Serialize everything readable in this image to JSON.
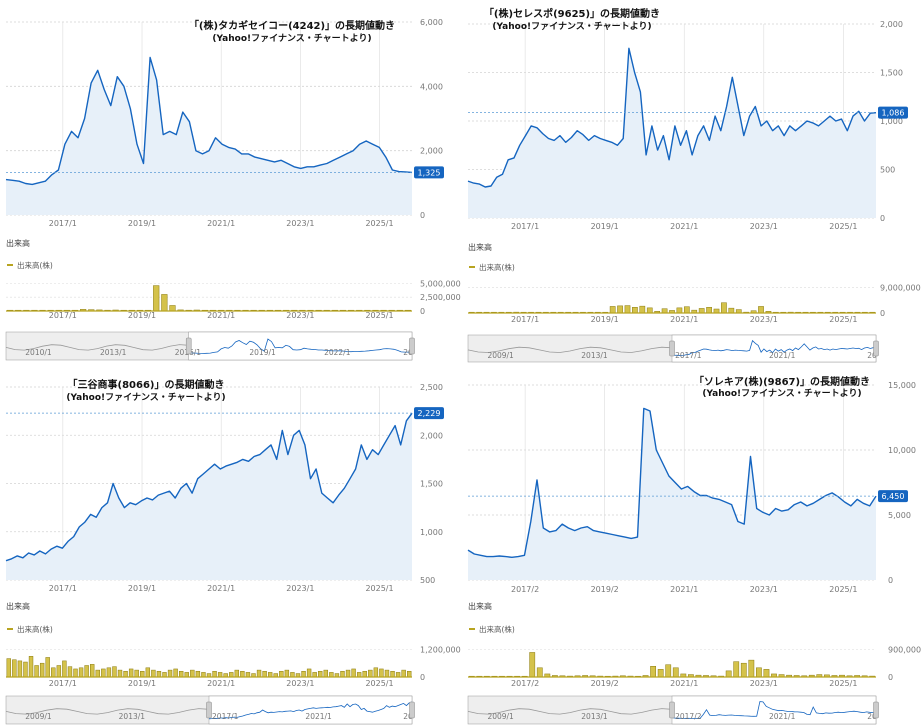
{
  "chart_data": [
    {
      "type": "line",
      "title": "「(株)タカギセイコー(4242)」の長期値動き",
      "subtitle": "(Yahoo!ファイナンス・チャートより)",
      "x_ticks": [
        "2017/1",
        "2019/1",
        "2021/1",
        "2023/1",
        "2025/1"
      ],
      "y_ticks": [
        "0",
        "2,000",
        "4,000",
        "6,000"
      ],
      "ylim": [
        0,
        6000
      ],
      "last_value_label": "1,325",
      "series": [
        {
          "values": [
            1100,
            1080,
            1050,
            980,
            950,
            1000,
            1050,
            1250,
            1400,
            2200,
            2600,
            2400,
            3000,
            4100,
            4500,
            3900,
            3400,
            4300,
            4000,
            3300,
            2200,
            1600,
            4900,
            4200,
            2500,
            2600,
            2500,
            3200,
            2900,
            2000,
            1900,
            2000,
            2400,
            2200,
            2100,
            2050,
            1900,
            1900,
            1800,
            1750,
            1700,
            1650,
            1700,
            1600,
            1500,
            1450,
            1500,
            1500,
            1550,
            1600,
            1700,
            1800,
            1900,
            2000,
            2200,
            2300,
            2200,
            2100,
            1800,
            1400,
            1350,
            1340,
            1325
          ]
        }
      ],
      "volume_label": "出来高",
      "volume_legend": "出来高(株)",
      "volume_ticks": [
        "0",
        "2,500,000",
        "5,000,000"
      ],
      "volume": [
        50000,
        40000,
        30000,
        60000,
        80000,
        50000,
        40000,
        60000,
        90000,
        300000,
        250000,
        200000,
        150000,
        180000,
        120000,
        100000,
        90000,
        80000,
        4600000,
        3000000,
        1000000,
        200000,
        150000,
        180000,
        120000,
        100000,
        90000,
        80000,
        70000,
        60000,
        50000,
        60000,
        70000,
        50000,
        40000,
        60000,
        50000,
        40000,
        30000,
        50000,
        40000,
        30000,
        50000,
        60000,
        40000,
        50000,
        30000,
        40000,
        50000,
        40000
      ],
      "nav_ticks": [
        "2010/1",
        "2013/1",
        "2016/1",
        "2019/1",
        "2022/1",
        "20"
      ]
    },
    {
      "type": "line",
      "title": "「(株)セレスポ(9625)」の長期値動き",
      "subtitle": "(Yahoo!ファイナンス・チャートより)",
      "x_ticks": [
        "2017/1",
        "2019/1",
        "2021/1",
        "2023/1",
        "2025/1"
      ],
      "y_ticks": [
        "0",
        "500",
        "1,000",
        "1,500",
        "2,000"
      ],
      "ylim": [
        0,
        2000
      ],
      "last_value_label": "1,086",
      "series": [
        {
          "values": [
            380,
            360,
            350,
            320,
            330,
            420,
            450,
            600,
            620,
            750,
            850,
            950,
            930,
            870,
            820,
            800,
            850,
            780,
            830,
            900,
            860,
            800,
            850,
            820,
            800,
            780,
            750,
            820,
            1750,
            1500,
            1300,
            650,
            950,
            700,
            850,
            600,
            950,
            750,
            900,
            650,
            850,
            950,
            800,
            1050,
            900,
            1150,
            1450,
            1150,
            850,
            1050,
            1150,
            950,
            1000,
            900,
            950,
            850,
            950,
            900,
            950,
            1000,
            980,
            950,
            1000,
            1050,
            1000,
            1020,
            900,
            1050,
            1100,
            1000,
            1080,
            1086
          ]
        }
      ],
      "volume_label": "出来高",
      "volume_legend": "出来高(株)",
      "volume_ticks": [
        "0",
        "9,000,000"
      ],
      "volume": [
        50000,
        40000,
        30000,
        60000,
        50000,
        40000,
        300000,
        80000,
        50000,
        60000,
        40000,
        60000,
        80000,
        50000,
        40000,
        60000,
        80000,
        70000,
        60000,
        2300000,
        2500000,
        2600000,
        2000000,
        2400000,
        1800000,
        600000,
        1500000,
        900000,
        1800000,
        2200000,
        1000000,
        1600000,
        2000000,
        1400000,
        3600000,
        1700000,
        1200000,
        300000,
        800000,
        2300000,
        600000,
        200000,
        100000,
        300000,
        200000,
        100000,
        150000,
        80000,
        200000,
        100000,
        120000,
        80000,
        60000,
        100000,
        80000
      ],
      "nav_ticks": [
        "2009/1",
        "2013/1",
        "2017/1",
        "2021/1",
        "20"
      ]
    },
    {
      "type": "line",
      "title": "「三谷商事(8066)」の長期値動き",
      "subtitle": "(Yahoo!ファイナンス・チャートより)",
      "x_ticks": [
        "2017/1",
        "2019/1",
        "2021/1",
        "2023/1",
        "2025/1"
      ],
      "y_ticks": [
        "500",
        "1,000",
        "1,500",
        "2,000",
        "2,500"
      ],
      "ylim": [
        500,
        2500
      ],
      "last_value_label": "2,229",
      "series": [
        {
          "values": [
            700,
            720,
            750,
            730,
            780,
            760,
            800,
            770,
            820,
            850,
            830,
            900,
            950,
            1050,
            1100,
            1180,
            1150,
            1250,
            1300,
            1500,
            1350,
            1250,
            1300,
            1280,
            1320,
            1350,
            1330,
            1380,
            1400,
            1420,
            1350,
            1450,
            1500,
            1400,
            1550,
            1600,
            1650,
            1700,
            1650,
            1680,
            1700,
            1720,
            1750,
            1730,
            1780,
            1800,
            1850,
            1900,
            1750,
            2050,
            1800,
            2000,
            2050,
            1900,
            1550,
            1650,
            1400,
            1350,
            1300,
            1380,
            1450,
            1550,
            1650,
            1900,
            1750,
            1850,
            1800,
            1900,
            2000,
            2100,
            1900,
            2150,
            2229
          ]
        }
      ],
      "volume_label": "出来高",
      "volume_legend": "出来高(株)",
      "volume_ticks": [
        "0",
        "1,200,000"
      ],
      "volume": [
        800000,
        750000,
        700000,
        650000,
        900000,
        500000,
        600000,
        850000,
        400000,
        500000,
        700000,
        450000,
        350000,
        400000,
        500000,
        550000,
        300000,
        350000,
        400000,
        450000,
        300000,
        250000,
        350000,
        300000,
        250000,
        400000,
        300000,
        250000,
        200000,
        300000,
        350000,
        250000,
        200000,
        300000,
        250000,
        200000,
        150000,
        250000,
        200000,
        150000,
        200000,
        300000,
        250000,
        200000,
        150000,
        300000,
        250000,
        200000,
        150000,
        250000,
        300000,
        200000,
        150000,
        250000,
        350000,
        200000,
        250000,
        300000,
        200000,
        150000,
        250000,
        300000,
        350000,
        200000,
        250000,
        300000,
        400000,
        350000,
        300000,
        250000,
        200000,
        300000,
        250000
      ],
      "nav_ticks": [
        "2009/1",
        "2013/1",
        "2017/1",
        "2021/1",
        "20"
      ]
    },
    {
      "type": "line",
      "title": "「ソレキア(株)(9867)」の長期値動き",
      "subtitle": "(Yahoo!ファイナンス・チャートより)",
      "x_ticks": [
        "2017/2",
        "2019/2",
        "2021/1",
        "2023/1",
        "2025/1"
      ],
      "y_ticks": [
        "0",
        "5,000",
        "10,000",
        "15,000"
      ],
      "ylim": [
        0,
        15000
      ],
      "last_value_label": "6,450",
      "series": [
        {
          "values": [
            2300,
            2000,
            1900,
            1800,
            1800,
            1850,
            1800,
            1750,
            1800,
            1900,
            4500,
            7700,
            4000,
            3700,
            3800,
            4300,
            4000,
            3800,
            4000,
            4100,
            3800,
            3700,
            3600,
            3500,
            3400,
            3300,
            3200,
            3300,
            13200,
            13000,
            10000,
            9000,
            8000,
            7500,
            7000,
            7200,
            6800,
            6500,
            6500,
            6300,
            6200,
            6000,
            5800,
            4500,
            4300,
            9500,
            5500,
            5200,
            5000,
            5500,
            5300,
            5400,
            5800,
            6000,
            5700,
            5900,
            6200,
            6500,
            6700,
            6400,
            6000,
            5700,
            6200,
            5900,
            5700,
            6450
          ]
        }
      ],
      "volume_label": "出来高",
      "volume_legend": "出来高(株)",
      "volume_ticks": [
        "0",
        "900,000"
      ],
      "volume": [
        5000,
        4000,
        3000,
        4000,
        5000,
        3000,
        4000,
        5000,
        800000,
        300000,
        100000,
        50000,
        40000,
        30000,
        40000,
        50000,
        40000,
        30000,
        20000,
        30000,
        40000,
        30000,
        20000,
        50000,
        350000,
        250000,
        400000,
        300000,
        100000,
        80000,
        60000,
        50000,
        40000,
        30000,
        200000,
        500000,
        450000,
        550000,
        300000,
        250000,
        100000,
        80000,
        60000,
        50000,
        40000,
        60000,
        80000,
        70000,
        50000,
        60000,
        40000,
        50000,
        40000,
        30000
      ],
      "nav_ticks": [
        "2009/1",
        "2013/1",
        "2017/2",
        "2021/1",
        "20"
      ]
    }
  ]
}
